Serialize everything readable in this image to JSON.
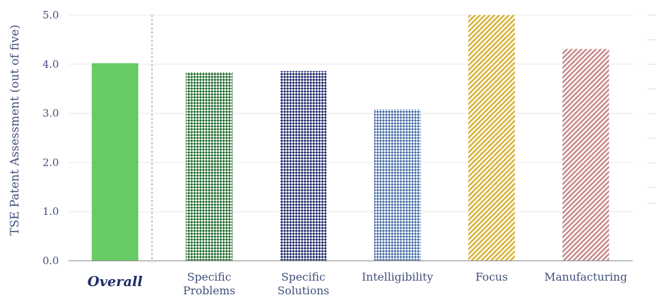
{
  "chart_data": {
    "type": "bar",
    "ylabel": "TSE Patent Assessment (out of five)",
    "ylim": [
      0,
      5
    ],
    "yticks": [
      "0.0",
      "1.0",
      "2.0",
      "3.0",
      "4.0",
      "5.0"
    ],
    "grid": true,
    "categories": [
      {
        "label": [
          "Overall"
        ],
        "value": 4.02,
        "color": "#66cc66",
        "pattern": "solid",
        "emphasis": true
      },
      {
        "label": [
          "Specific",
          "Problems"
        ],
        "value": 3.84,
        "color": "#1e6b2b",
        "pattern": "checker"
      },
      {
        "label": [
          "Specific",
          "Solutions"
        ],
        "value": 3.86,
        "color": "#1f2a6b",
        "pattern": "checker"
      },
      {
        "label": [
          "Intelligibility"
        ],
        "value": 3.08,
        "color": "#4a6fa8",
        "pattern": "checker"
      },
      {
        "label": [
          "Focus"
        ],
        "value": 5.0,
        "color": "#d9b23a",
        "pattern": "diagonal"
      },
      {
        "label": [
          "Manufacturing"
        ],
        "value": 4.31,
        "color": "#c98a8a",
        "pattern": "diagonal"
      }
    ]
  }
}
